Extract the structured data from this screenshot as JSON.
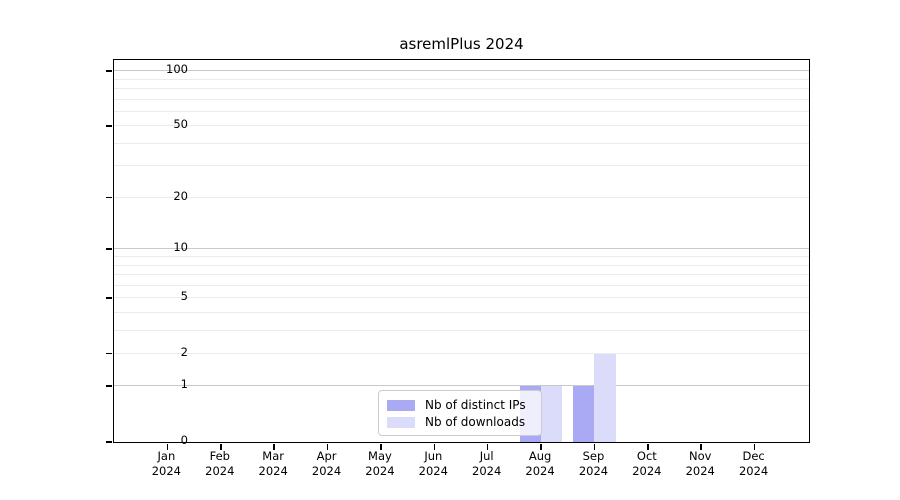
{
  "title": "asremlPlus 2024",
  "chart_data": {
    "type": "bar",
    "title": "asremlPlus 2024",
    "categories": [
      "Jan",
      "Feb",
      "Mar",
      "Apr",
      "May",
      "Jun",
      "Jul",
      "Aug",
      "Sep",
      "Oct",
      "Nov",
      "Dec"
    ],
    "x_year_label": "2024",
    "series": [
      {
        "name": "Nb of distinct IPs",
        "color": "#a9aaf3",
        "values": [
          0,
          0,
          0,
          0,
          0,
          0,
          0,
          1,
          1,
          0,
          0,
          0
        ]
      },
      {
        "name": "Nb of downloads",
        "color": "#dbdcf9",
        "values": [
          0,
          0,
          0,
          0,
          0,
          0,
          0,
          1,
          2,
          0,
          0,
          0
        ]
      }
    ],
    "yscale": "log1p",
    "ylim": [
      0,
      114
    ],
    "ytick_values": [
      0,
      1,
      2,
      5,
      10,
      20,
      50,
      100
    ],
    "major_gridlines": [
      1,
      10,
      100
    ],
    "minor_gridlines": [
      2,
      3,
      4,
      5,
      6,
      7,
      8,
      9,
      20,
      30,
      40,
      50,
      60,
      70,
      80,
      90
    ],
    "grid": true,
    "legend_position": "bottom-center-inside"
  },
  "colors": {
    "major_grid": "#c9c9c9",
    "minor_grid": "#ebebeb",
    "spine": "#000000",
    "background": "#ffffff"
  }
}
